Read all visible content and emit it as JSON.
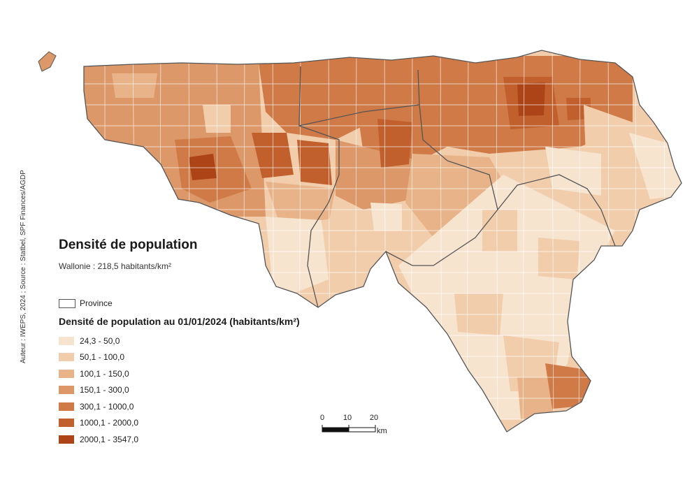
{
  "credit": "Auteur : IWEPS, 2024 ; Source : Statbel, SPF Finances/AGDP",
  "title": "Densité de population",
  "subtitle": "Wallonie : 218,5 habitants/km²",
  "province_label": "Province",
  "legend": {
    "title": "Densité de population au 01/01/2024 (habitants/km²)",
    "classes": [
      {
        "label": "24,3 - 50,0",
        "color": "#f7e4cf"
      },
      {
        "label": "50,1 - 100,0",
        "color": "#f1cdac"
      },
      {
        "label": "100,1 - 150,0",
        "color": "#e8b389"
      },
      {
        "label": "150,1 - 300,0",
        "color": "#dc9868"
      },
      {
        "label": "300,1 - 1000,0",
        "color": "#d07a47"
      },
      {
        "label": "1000,1 - 2000,0",
        "color": "#c1602d"
      },
      {
        "label": "2000,1 - 3547,0",
        "color": "#ad4418"
      }
    ]
  },
  "scale": {
    "ticks": [
      "0",
      "10",
      "20"
    ],
    "unit": "km"
  },
  "colors": {
    "province_border": "#555555",
    "commune_border": "#ffffff"
  }
}
